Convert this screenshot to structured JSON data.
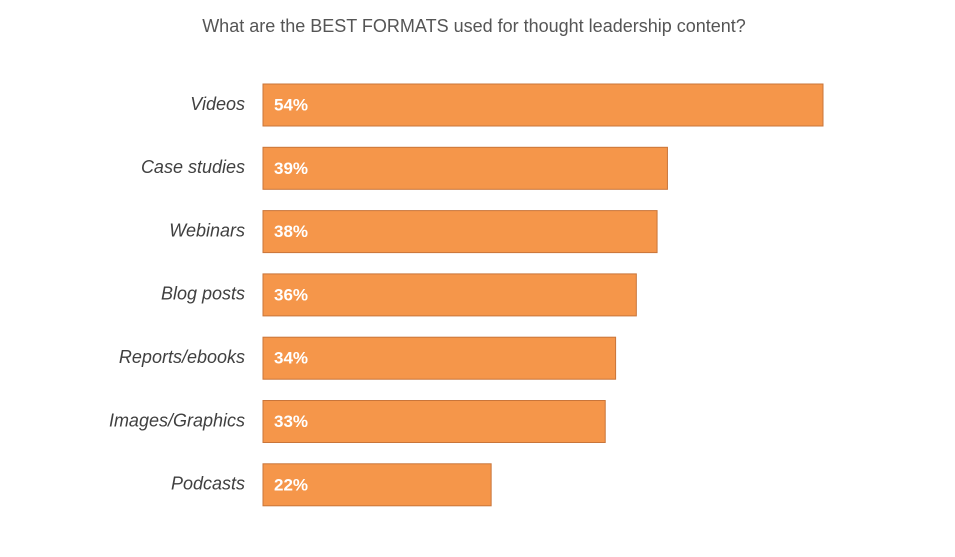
{
  "chart_data": {
    "type": "bar",
    "orientation": "horizontal",
    "title": "What are the BEST FORMATS used for thought leadership content?",
    "categories": [
      "Videos",
      "Case studies",
      "Webinars",
      "Blog posts",
      "Reports/ebooks",
      "Images/Graphics",
      "Podcasts"
    ],
    "values": [
      54,
      39,
      38,
      36,
      34,
      33,
      22
    ],
    "value_labels": [
      "54%",
      "39%",
      "38%",
      "36%",
      "34%",
      "33%",
      "22%"
    ],
    "color": "#f5964a"
  }
}
